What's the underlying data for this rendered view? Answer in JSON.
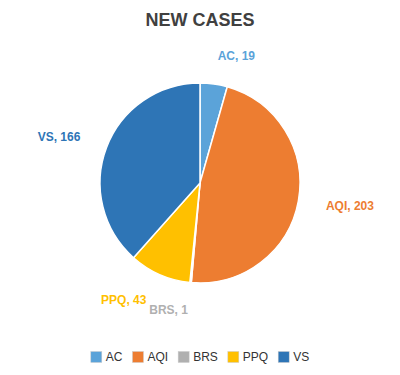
{
  "chart_data": {
    "type": "pie",
    "title": "NEW CASES",
    "categories": [
      "AC",
      "AQI",
      "BRS",
      "PPQ",
      "VS"
    ],
    "values": [
      19,
      203,
      1,
      43,
      166
    ],
    "value_labels": [
      "AC, 19",
      "AQI, 203",
      "BRS, 1",
      "PPQ, 43",
      "VS, 166"
    ],
    "colors": [
      "#5BA3D9",
      "#ED7D31",
      "#B0B0B0",
      "#FFC000",
      "#2E75B6"
    ],
    "data_labels": true,
    "legend": "bottom"
  }
}
